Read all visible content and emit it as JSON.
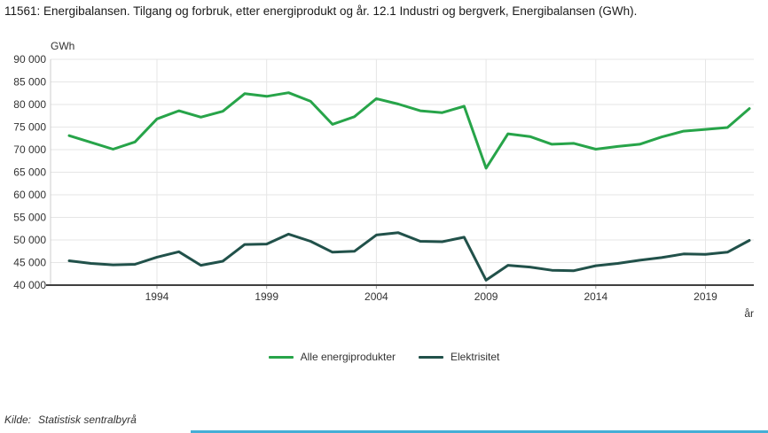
{
  "title": "11561: Energibalansen. Tilgang og forbruk, etter energiprodukt og år. 12.1 Industri og bergverk, Energibalansen (GWh).",
  "chart_data": {
    "type": "line",
    "title": "11561: Energibalansen. Tilgang og forbruk, etter energiprodukt og år. 12.1 Industri og bergverk, Energibalansen (GWh).",
    "xlabel": "år",
    "ylabel": "GWh",
    "ylim": [
      40000,
      90000
    ],
    "yticks": [
      40000,
      45000,
      50000,
      55000,
      60000,
      65000,
      70000,
      75000,
      80000,
      85000,
      90000
    ],
    "ytick_labels": [
      "40 000",
      "45 000",
      "50 000",
      "55 000",
      "60 000",
      "65 000",
      "70 000",
      "75 000",
      "80 000",
      "85 000",
      "90 000"
    ],
    "xticks": [
      1994,
      1999,
      2004,
      2009,
      2014,
      2019
    ],
    "grid": true,
    "legend_position": "bottom",
    "x": [
      1990,
      1991,
      1992,
      1993,
      1994,
      1995,
      1996,
      1997,
      1998,
      1999,
      2000,
      2001,
      2002,
      2003,
      2004,
      2005,
      2006,
      2007,
      2008,
      2009,
      2010,
      2011,
      2012,
      2013,
      2014,
      2015,
      2016,
      2017,
      2018,
      2019,
      2020,
      2021
    ],
    "series": [
      {
        "name": "Alle energiprodukter",
        "color": "#27a449",
        "values": [
          73100,
          71600,
          70100,
          71700,
          76800,
          78600,
          77200,
          78500,
          82400,
          81800,
          82600,
          80700,
          75600,
          77300,
          81300,
          80100,
          78600,
          78200,
          79600,
          65900,
          73500,
          72900,
          71200,
          71400,
          70100,
          70700,
          71200,
          72800,
          74100,
          74500,
          74900,
          79100
        ]
      },
      {
        "name": "Elektrisitet",
        "color": "#21514a",
        "values": [
          45400,
          44800,
          44500,
          44600,
          46200,
          47400,
          44400,
          45300,
          49000,
          49100,
          51300,
          49700,
          47300,
          47500,
          51100,
          51600,
          49700,
          49600,
          50600,
          41100,
          44400,
          44000,
          43300,
          43200,
          44300,
          44800,
          45500,
          46100,
          46900,
          46800,
          47300,
          49900
        ]
      }
    ]
  },
  "source": {
    "prefix": "Kilde:",
    "text": "Statistisk sentralbyrå"
  },
  "colors": {
    "grid": "#e6e6e6",
    "axis": "#3f3f3f",
    "tick_text": "#333333",
    "accent_bar": "#45aed6"
  }
}
